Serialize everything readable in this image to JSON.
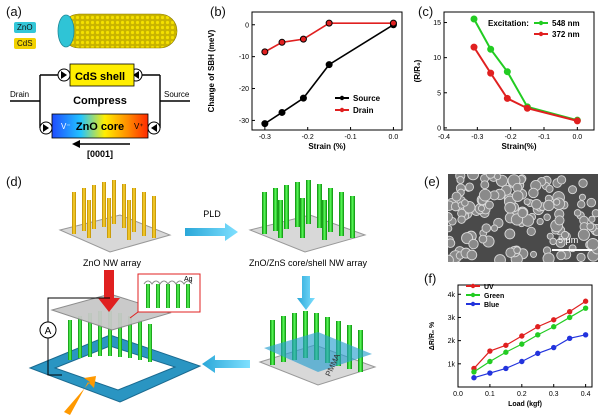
{
  "panels": {
    "a": {
      "label": "(a)",
      "legend": [
        {
          "text": "ZnO",
          "color": "#33c6d8"
        },
        {
          "text": "CdS",
          "color": "#f2d200"
        }
      ],
      "shell_label": "CdS shell",
      "compress_label": "Compress",
      "core_label": "ZnO core",
      "v_minus": "V⁻",
      "v_plus": "V⁺",
      "drain_label": "Drain",
      "source_label": "Source",
      "direction_label": "[0001]"
    },
    "b": {
      "label": "(b)"
    },
    "c": {
      "label": "(c)"
    },
    "d": {
      "label": "(d)",
      "step1_label": "ZnO NW array",
      "step2_label": "ZnO/ZnS core/shell NW array",
      "arrow_label": "PLD",
      "polymer_label": "PMMA",
      "inset_label": "Ag",
      "meter_label": "A"
    },
    "e": {
      "label": "(e)",
      "scale_label": "5 μm"
    },
    "f": {
      "label": "(f)"
    }
  },
  "chart_data": [
    {
      "id": "b",
      "type": "line",
      "xlabel": "Strain (%)",
      "ylabel": "Change of SBH (meV)",
      "xlim": [
        -0.33,
        0.02
      ],
      "ylim": [
        -33,
        4
      ],
      "xticks": [
        "-0.3",
        "-0.2",
        "-0.1",
        "0.0"
      ],
      "yticks": [
        "-30",
        "-20",
        "-10",
        "0"
      ],
      "legend_position": "bottom-right",
      "series": [
        {
          "name": "Source",
          "color": "#000000",
          "x": [
            -0.3,
            -0.26,
            -0.21,
            -0.15,
            0.0
          ],
          "y": [
            -31,
            -27.5,
            -23,
            -12.5,
            0
          ]
        },
        {
          "name": "Drain",
          "color": "#e02020",
          "x": [
            -0.3,
            -0.26,
            -0.21,
            -0.15,
            0.0
          ],
          "y": [
            -8.5,
            -5.5,
            -4.5,
            0.5,
            0.5
          ]
        }
      ]
    },
    {
      "id": "c",
      "type": "line",
      "xlabel": "Strain(%)",
      "ylabel": "(R/R₀)",
      "xlim": [
        -0.4,
        0.05
      ],
      "ylim": [
        -0.3,
        16.5
      ],
      "xticks": [
        "-0.4",
        "-0.3",
        "-0.2",
        "-0.1",
        "0.0"
      ],
      "yticks": [
        "0",
        "5",
        "10",
        "15"
      ],
      "legend_title": "Excitation:",
      "legend_position": "top-right",
      "series": [
        {
          "name": "548 nm",
          "color": "#22cc22",
          "x": [
            -0.31,
            -0.26,
            -0.21,
            -0.15,
            0.0
          ],
          "y": [
            15.5,
            11.2,
            8,
            3,
            1.1
          ]
        },
        {
          "name": "372 nm",
          "color": "#e02020",
          "x": [
            -0.31,
            -0.26,
            -0.21,
            -0.15,
            0.0
          ],
          "y": [
            11.5,
            7.8,
            4.2,
            2.8,
            1.0
          ]
        }
      ]
    },
    {
      "id": "f",
      "type": "line",
      "xlabel": "Load (kgf)",
      "ylabel": "ΔR/R₀ %",
      "xlim": [
        0,
        0.42
      ],
      "ylim": [
        0,
        4400
      ],
      "xticks": [
        "0.0",
        "0.1",
        "0.2",
        "0.3",
        "0.4"
      ],
      "yticks": [
        "1k",
        "2k",
        "3k",
        "4k"
      ],
      "legend_position": "top-left",
      "series": [
        {
          "name": "UV",
          "color": "#e02020",
          "x": [
            0.05,
            0.1,
            0.15,
            0.2,
            0.25,
            0.3,
            0.35,
            0.4
          ],
          "y": [
            800,
            1550,
            1800,
            2200,
            2600,
            2900,
            3250,
            3700
          ]
        },
        {
          "name": "Green",
          "color": "#22cc22",
          "x": [
            0.05,
            0.1,
            0.15,
            0.2,
            0.25,
            0.3,
            0.35,
            0.4
          ],
          "y": [
            650,
            1100,
            1500,
            1850,
            2250,
            2600,
            3000,
            3400
          ]
        },
        {
          "name": "Blue",
          "color": "#2233dd",
          "x": [
            0.05,
            0.1,
            0.15,
            0.2,
            0.25,
            0.3,
            0.35,
            0.4
          ],
          "y": [
            400,
            600,
            800,
            1100,
            1450,
            1700,
            2100,
            2250
          ]
        }
      ]
    }
  ]
}
